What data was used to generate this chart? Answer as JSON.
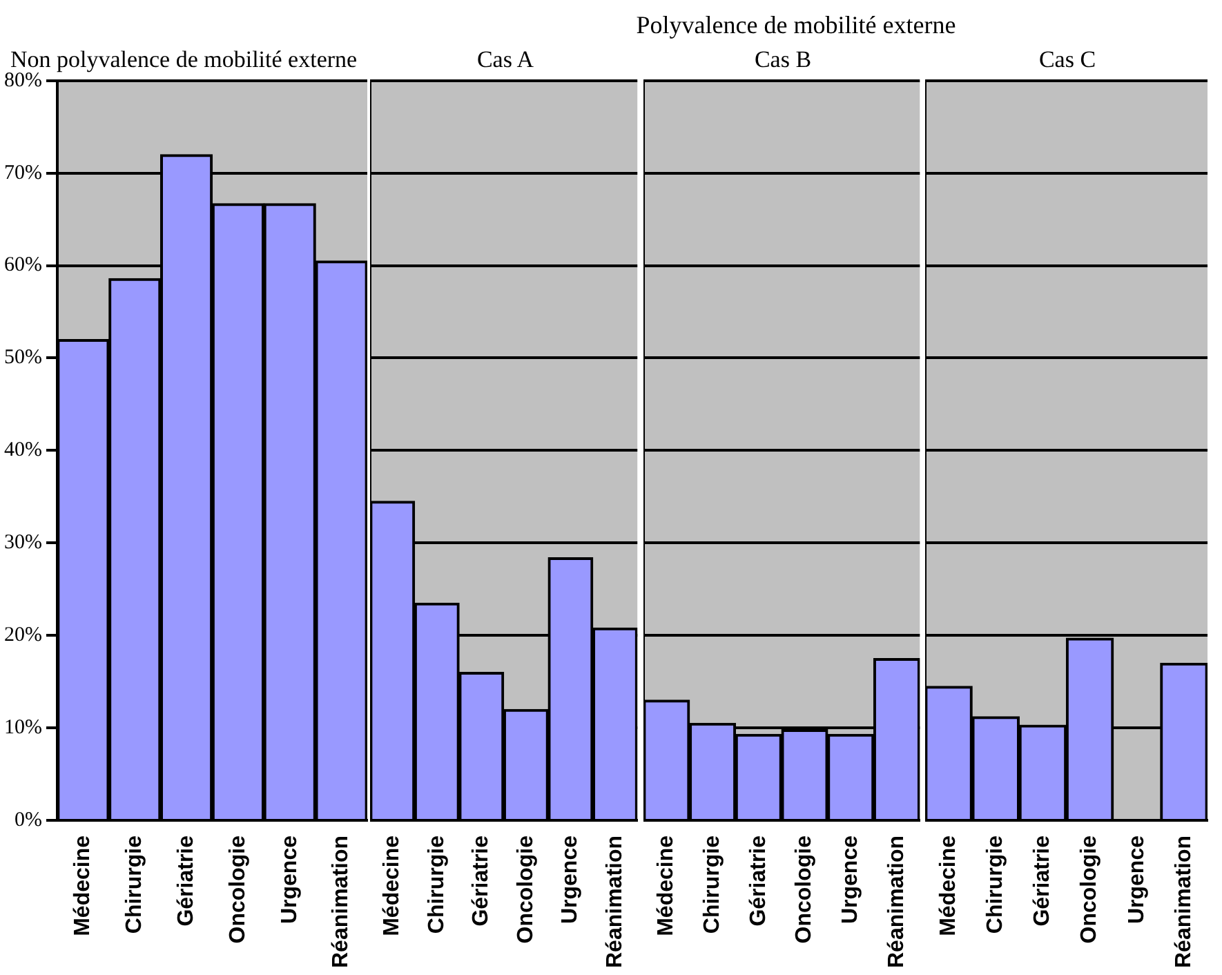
{
  "chart_data": [
    {
      "type": "bar",
      "title": "Non polyvalence de mobilité externe",
      "categories": [
        "Médecine",
        "Chirurgie",
        "Gériatrie",
        "Oncologie",
        "Urgence",
        "Réanimation"
      ],
      "values": [
        52,
        58.6,
        72,
        66.7,
        66.7,
        60.5
      ],
      "color": "#9999ff",
      "ylim": [
        0,
        80
      ],
      "yticks": [
        {
          "value": 0,
          "label": "0%"
        },
        {
          "value": 10,
          "label": "10%"
        },
        {
          "value": 20,
          "label": "20%"
        },
        {
          "value": 30,
          "label": "30%"
        },
        {
          "value": 40,
          "label": "40%"
        },
        {
          "value": 50,
          "label": "50%"
        },
        {
          "value": 60,
          "label": "60%"
        },
        {
          "value": 70,
          "label": "70%"
        },
        {
          "value": 80,
          "label": "80%"
        }
      ],
      "grid": "y"
    },
    {
      "type": "bar",
      "title": "Cas A",
      "annotations": [
        "Polyvalence de mobilité externe"
      ],
      "categories": [
        "Médecine",
        "Chirurgie",
        "Gériatrie",
        "Oncologie",
        "Urgence",
        "Réanimation"
      ],
      "values": [
        34.5,
        23.5,
        16,
        12,
        28.4,
        20.8
      ],
      "color": "#9999ff",
      "ylim": [
        0,
        80
      ],
      "yticks": [
        0,
        10,
        20,
        30,
        40,
        50,
        60,
        70,
        80
      ],
      "grid": "y",
      "tick_labels": "x"
    },
    {
      "type": "bar",
      "title": "Cas B",
      "categories": [
        "Médecine",
        "Chirurgie",
        "Gériatrie",
        "Oncologie",
        "Urgence",
        "Réanimation"
      ],
      "values": [
        13,
        10.5,
        9.3,
        9.8,
        9.3,
        17.5
      ],
      "color": "#9999ff",
      "ylim": [
        0,
        80
      ],
      "yticks": [
        0,
        10,
        20,
        30,
        40,
        50,
        60,
        70,
        80
      ],
      "grid": "y",
      "tick_labels": "x"
    },
    {
      "type": "bar",
      "title": "Cas C",
      "categories": [
        "Médecine",
        "Chirurgie",
        "Gériatrie",
        "Oncologie",
        "Urgence",
        "Réanimation"
      ],
      "values": [
        14.5,
        11.2,
        10.3,
        19.7,
        0,
        17
      ],
      "color": "#9999ff",
      "ylim": [
        0,
        80
      ],
      "yticks": [
        0,
        10,
        20,
        30,
        40,
        50,
        60,
        70,
        80
      ],
      "grid": "y",
      "tick_labels": "x"
    }
  ]
}
